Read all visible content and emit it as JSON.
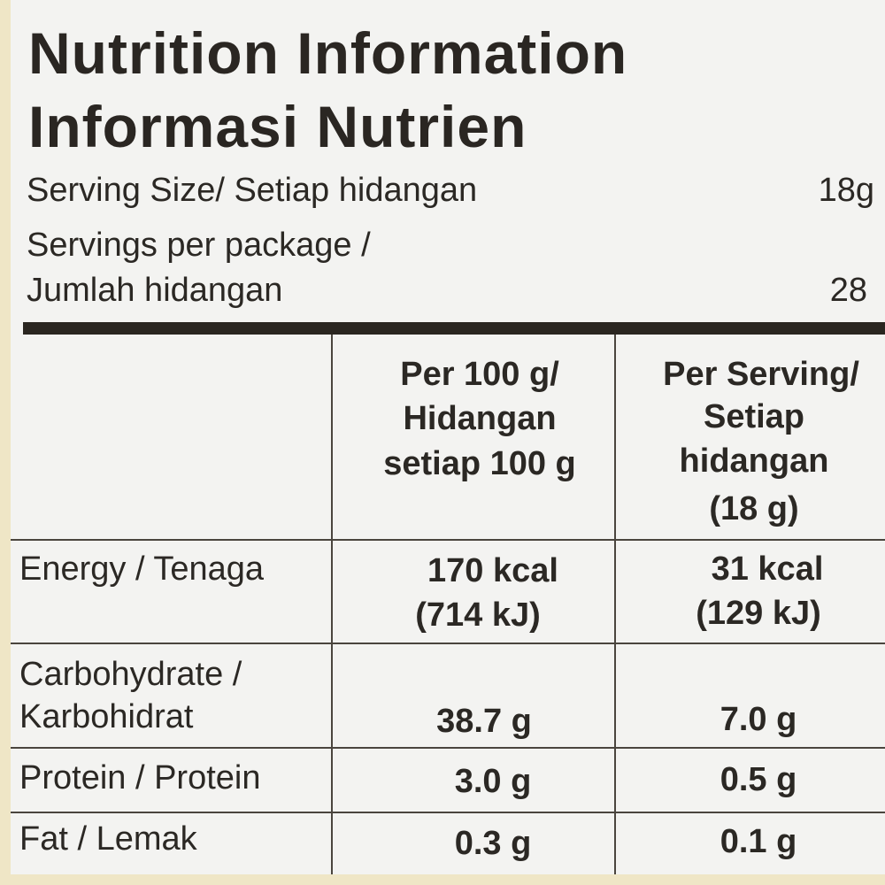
{
  "header": {
    "title": [
      "Nutrition Information",
      "Informasi Nutrien"
    ]
  },
  "serving": {
    "size_label": "Serving Size/ Setiap hidangan",
    "size": "18g",
    "per_package_label": [
      "Servings per package /",
      "Jumlah hidangan"
    ],
    "per_package": "28"
  },
  "table": {
    "columns": [
      [
        "Per 100 g/",
        "Hidangan",
        "setiap 100 g"
      ],
      [
        "Per Serving/",
        "Setiap",
        "hidangan",
        "(18 g)"
      ]
    ],
    "rows": [
      [
        [
          "Energy / Tenaga"
        ],
        [
          "170 kcal",
          "(714 kJ)"
        ],
        [
          "31 kcal",
          "(129 kJ)"
        ]
      ],
      [
        [
          "Carbohydrate /",
          "Karbohidrat"
        ],
        [
          "38.7 g"
        ],
        [
          "7.0 g"
        ]
      ],
      [
        [
          "Protein / Protein"
        ],
        [
          "3.0 g"
        ],
        [
          "0.5 g"
        ]
      ],
      [
        [
          "Fat / Lemak"
        ],
        [
          "0.3 g"
        ],
        [
          "0.1 g"
        ]
      ]
    ]
  }
}
